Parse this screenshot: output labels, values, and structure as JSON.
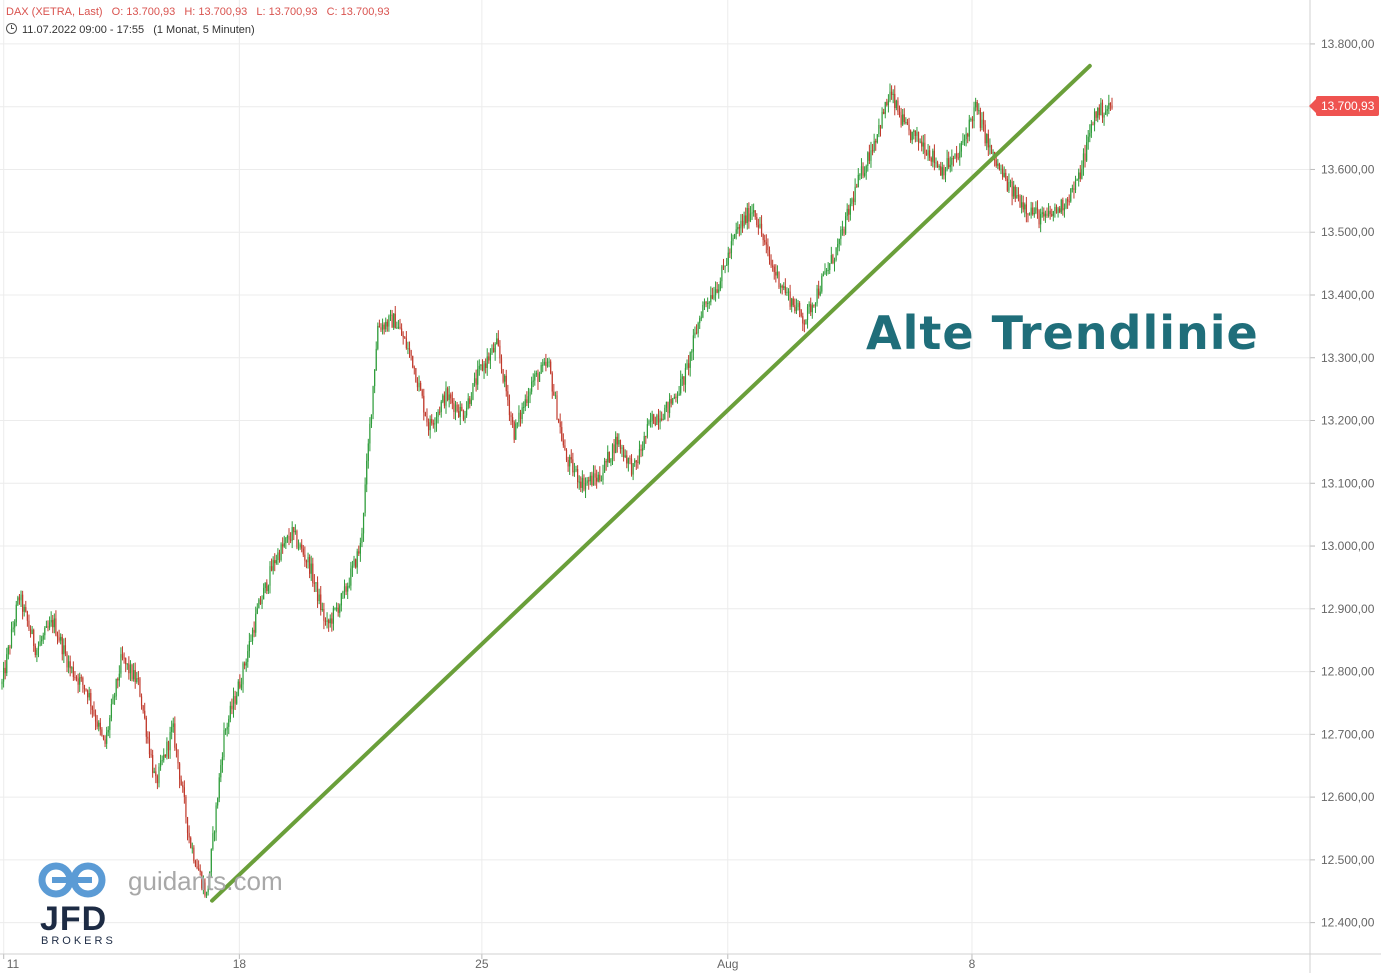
{
  "header": {
    "instrument": "DAX (XETRA, Last)",
    "open": "O: 13.700,93",
    "high": "H: 13.700,93",
    "low": "L: 13.700,93",
    "close": "C: 13.700,93",
    "range": "11.07.2022 09:00 - 17:55",
    "interval": "(1 Monat, 5 Minuten)"
  },
  "last_price_badge": "13.700,93",
  "annotation": "Alte Trendlinie",
  "watermark": {
    "site": "guidants.com",
    "broker": "JFD",
    "broker_sub": "BROKERS"
  },
  "colors": {
    "up": "#2e9c3a",
    "down": "#c0392b",
    "trendline": "#6a9f3a",
    "badge": "#ef5350",
    "annotation": "#1f6e7a"
  },
  "chart_data": {
    "type": "candlestick",
    "ylim": [
      12350,
      13870
    ],
    "y_ticks": [
      13800,
      13700,
      13600,
      13500,
      13400,
      13300,
      13200,
      13100,
      13000,
      12900,
      12800,
      12700,
      12600,
      12500,
      12400
    ],
    "y_tick_labels": [
      "13.800,00",
      "13.700,00",
      "13.600,00",
      "13.500,00",
      "13.400,00",
      "13.300,00",
      "13.200,00",
      "13.100,00",
      "13.000,00",
      "12.900,00",
      "12.800,00",
      "12.700,00",
      "12.600,00",
      "12.500,00",
      "12.400,00"
    ],
    "x_tick_labels": [
      "11",
      "18",
      "25",
      "Aug",
      "8"
    ],
    "path_points": [
      [
        0,
        12780
      ],
      [
        1,
        12920
      ],
      [
        2,
        12835
      ],
      [
        3,
        12880
      ],
      [
        4,
        12805
      ],
      [
        5,
        12770
      ],
      [
        6,
        12680
      ],
      [
        7,
        12820
      ],
      [
        8,
        12780
      ],
      [
        9,
        12620
      ],
      [
        10,
        12710
      ],
      [
        11,
        12530
      ],
      [
        12,
        12440
      ],
      [
        13,
        12700
      ],
      [
        14,
        12790
      ],
      [
        15,
        12900
      ],
      [
        16,
        12980
      ],
      [
        17,
        13020
      ],
      [
        18,
        12970
      ],
      [
        19,
        12870
      ],
      [
        20,
        12920
      ],
      [
        21,
        13000
      ],
      [
        22,
        13350
      ],
      [
        23,
        13360
      ],
      [
        24,
        13300
      ],
      [
        25,
        13190
      ],
      [
        26,
        13240
      ],
      [
        27,
        13210
      ],
      [
        28,
        13280
      ],
      [
        29,
        13320
      ],
      [
        30,
        13180
      ],
      [
        31,
        13260
      ],
      [
        32,
        13290
      ],
      [
        33,
        13140
      ],
      [
        34,
        13100
      ],
      [
        35,
        13110
      ],
      [
        36,
        13170
      ],
      [
        37,
        13120
      ],
      [
        38,
        13200
      ],
      [
        39,
        13220
      ],
      [
        40,
        13270
      ],
      [
        41,
        13380
      ],
      [
        42,
        13420
      ],
      [
        43,
        13500
      ],
      [
        44,
        13540
      ],
      [
        45,
        13450
      ],
      [
        46,
        13400
      ],
      [
        47,
        13360
      ],
      [
        48,
        13420
      ],
      [
        49,
        13480
      ],
      [
        50,
        13570
      ],
      [
        51,
        13640
      ],
      [
        52,
        13720
      ],
      [
        53,
        13660
      ],
      [
        54,
        13640
      ],
      [
        55,
        13600
      ],
      [
        56,
        13620
      ],
      [
        57,
        13700
      ],
      [
        58,
        13620
      ],
      [
        59,
        13570
      ],
      [
        60,
        13540
      ],
      [
        61,
        13520
      ],
      [
        62,
        13540
      ],
      [
        63,
        13580
      ],
      [
        64,
        13690
      ],
      [
        65,
        13700
      ]
    ],
    "trendline": {
      "start": [
        12.3,
        12435
      ],
      "end": [
        63.7,
        13765
      ],
      "label": "Alte Trendlinie"
    }
  }
}
